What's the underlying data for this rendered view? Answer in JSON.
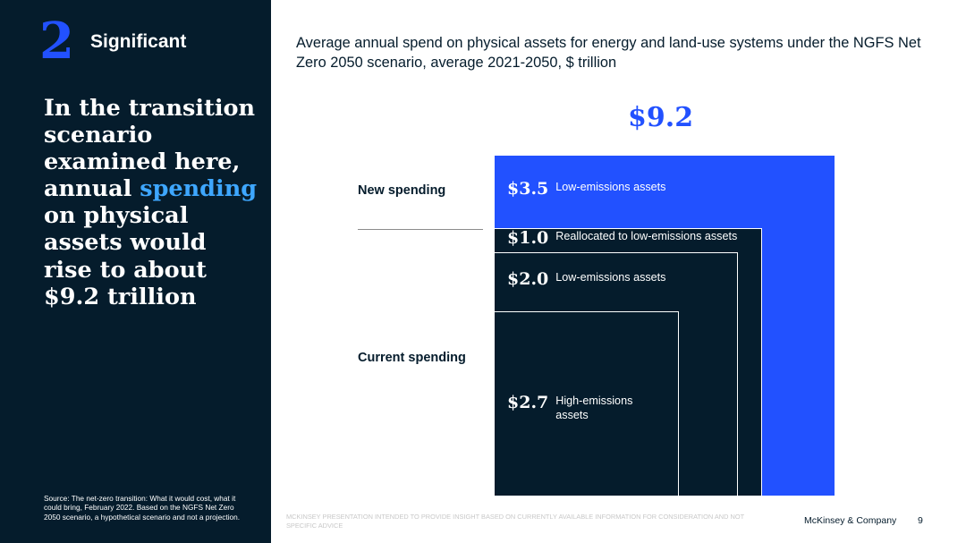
{
  "section": {
    "number": "2",
    "label": "Significant"
  },
  "headline": {
    "before": "In the transition scenario examined here, annual ",
    "highlight": "spending",
    "after": " on physical assets would rise to about $9.2 trillion"
  },
  "source": "Source: The net-zero transition: What it would cost, what it could bring, February 2022. Based on the NGFS Net Zero 2050 scenario, a hypothetical scenario and not a projection.",
  "footer": {
    "disclaimer": "MCKINSEY PRESENTATION INTENDED TO PROVIDE INSIGHT BASED ON CURRENTLY AVAILABLE INFORMATION FOR CONSIDERATION AND NOT SPECIFIC ADVICE",
    "company": "McKinsey & Company",
    "page": "9"
  },
  "colors": {
    "navy": "#051c2c",
    "blue": "#2251ff",
    "highlight": "#3ea7ff",
    "white": "#ffffff"
  },
  "chart_data": {
    "type": "nested-area",
    "title": "Average annual spend on physical assets for energy and land-use systems under the NGFS Net Zero 2050 scenario, average 2021-2050, $ trillion",
    "total_label": "$9.2",
    "total": 9.2,
    "groups": [
      {
        "name": "New spending"
      },
      {
        "name": "Current spending"
      }
    ],
    "segments": [
      {
        "value": 2.7,
        "value_label": "$2.7",
        "desc": "High-emissions assets",
        "group": "Current spending",
        "color": "#051c2c"
      },
      {
        "value": 2.0,
        "value_label": "$2.0",
        "desc": "Low-emissions assets",
        "group": "Current spending",
        "color": "#051c2c"
      },
      {
        "value": 1.0,
        "value_label": "$1.0",
        "desc": "Reallocated to low-emissions assets",
        "group": "Current spending",
        "color": "#051c2c"
      },
      {
        "value": 3.5,
        "value_label": "$3.5",
        "desc": "Low-emissions assets",
        "group": "New spending",
        "color": "#2251ff"
      }
    ]
  }
}
